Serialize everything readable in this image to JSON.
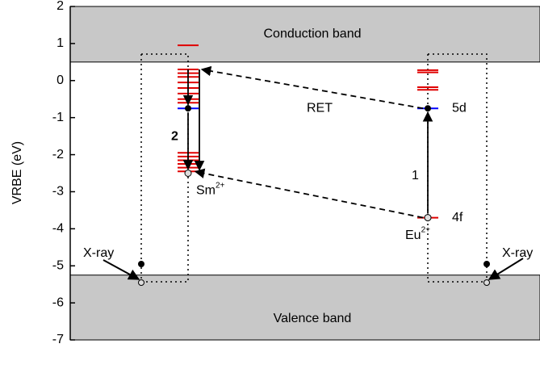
{
  "chart_data": {
    "type": "level-diagram",
    "y_label": "VRBE (eV)",
    "ylim": [
      -7,
      2
    ],
    "yticks": [
      -7,
      -6,
      -5,
      -4,
      -3,
      -2,
      -1,
      0,
      1,
      2
    ],
    "bands": [
      {
        "name": "Conduction band",
        "edge": 0.5,
        "color": "#c8c8c8"
      },
      {
        "name": "Valence band",
        "edge": -5.25,
        "color": "#c8c8c8"
      }
    ],
    "ions": [
      {
        "name": "Sm",
        "charge": "2+",
        "level_color": "#e00000",
        "levels": [
          0.95,
          0.3,
          0.2,
          0.1,
          -0.05,
          -0.2,
          -0.35,
          -0.5,
          -0.6,
          -1.95,
          -2.05,
          -2.15,
          -2.25,
          -2.35,
          -2.45
        ],
        "d5": -0.75,
        "f4": -2.5
      },
      {
        "name": "Eu",
        "charge": "2+",
        "level_color": "#e00000",
        "levels": [
          0.28,
          0.22,
          -0.18,
          -0.25
        ],
        "d5": -0.75,
        "f4": -3.7,
        "d5_label": "5d",
        "f4_label": "4f",
        "d5_color": "#0000ff",
        "f4_color": "#e00000"
      }
    ],
    "annotations": {
      "ret": "RET",
      "step1": "1",
      "step2": "2",
      "xray": [
        "X-ray",
        "X-ray"
      ]
    }
  }
}
